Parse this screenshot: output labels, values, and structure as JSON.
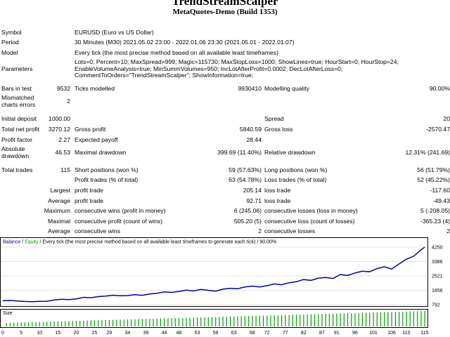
{
  "header": {
    "title": "TrendStreamScalper",
    "subtitle": "MetaQuotes-Demo (Build 1353)"
  },
  "info": {
    "symbol_label": "Symbol",
    "symbol_value": "EURUSD (Euro vs US Dollar)",
    "period_label": "Period",
    "period_value": "30 Minutes (M30) 2021.05.02 23:00 - 2022.01.06 23:30 (2021.05.01 - 2022.01.07)",
    "model_label": "Model",
    "model_value": "Every tick (the most precise method based on all available least timeframes)",
    "parameters_label": "Parameters",
    "parameters_lines": [
      "Lots=0; Percent=10; MaxSpread=999; Magic=115730; MaxStopLoss=1000; ShowLines=true; HourStart=0; HourStop=24;",
      "EnableVolumeAnalysis=true; MinSummVolumes=950; IncLotAfterProfit=0.0002; DecLotAfterLoss=0;",
      "CommentToOrders=\"TrendStreamScalper\"; ShowInformation=true;"
    ],
    "bars_label": "Bars in test",
    "bars_value": "9532",
    "ticks_label": "Ticks modelled",
    "ticks_value": "9930410",
    "quality_label": "Modelling quality",
    "quality_value": "90.00%",
    "mismatch_label_1": "Mismatched",
    "mismatch_label_2": "charts errors",
    "mismatch_value": "2"
  },
  "results": {
    "initial_deposit_label": "Initial deposit",
    "initial_deposit": "1000.00",
    "spread_label": "Spread",
    "spread": "20",
    "net_profit_label": "Total net profit",
    "net_profit": "3270.12",
    "gross_profit_label": "Gross profit",
    "gross_profit": "5840.59",
    "gross_loss_label": "Gross loss",
    "gross_loss": "-2570.47",
    "profit_factor_label": "Profit factor",
    "profit_factor": "2.27",
    "expected_payoff_label": "Expected payoff",
    "expected_payoff": "28.44",
    "abs_dd_label_1": "Absolute",
    "abs_dd_label_2": "drawdown",
    "abs_dd": "46.53",
    "max_dd_label": "Maximal drawdown",
    "max_dd": "399.69 (11.40%)",
    "rel_dd_label": "Relative drawdown",
    "rel_dd": "12.31% (241.69)",
    "total_trades_label": "Total trades",
    "total_trades": "115",
    "short_label": "Short positions (won %)",
    "short_value": "59 (57.63%)",
    "long_label": "Long positions (won %)",
    "long_value": "56 (51.79%)",
    "profit_trades_label": "Profit trades (% of total)",
    "profit_trades": "63 (54.78%)",
    "loss_trades_label": "Loss trades (% of total)",
    "loss_trades": "52 (45.22%)",
    "largest_label": "Largest",
    "largest_profit_label": "profit trade",
    "largest_profit": "205.14",
    "largest_loss_label": "loss trade",
    "largest_loss": "-117.60",
    "average_label": "Average",
    "average_profit_label": "profit trade",
    "average_profit": "92.71",
    "average_loss_label": "loss trade",
    "average_loss": "-49.43",
    "maximum_label": "Maximum",
    "max_cons_wins_label": "consecutive wins (profit in money)",
    "max_cons_wins": "6 (245.06)",
    "max_cons_losses_label": "consecutive losses (loss in money)",
    "max_cons_losses": "5 (-208.05)",
    "maximal_label": "Maximal",
    "maximal_cons_profit_label": "consecutive profit (count of wins)",
    "maximal_cons_profit": "505.20 (5)",
    "maximal_cons_loss_label": "consecutive loss (count of losses)",
    "maximal_cons_loss": "-365.23 (4)",
    "avg_cons_label": "Average",
    "avg_cons_wins_label": "consecutive wins",
    "avg_cons_wins": "2",
    "avg_cons_losses_label": "consecutive losses",
    "avg_cons_losses": "2"
  },
  "chart_data": {
    "type": "line",
    "legend": {
      "balance": "Balance",
      "sep": " / ",
      "equity": "Equity",
      "text": " / Every tick (the most precise method based on all available least timeframes to generate each tick) / 90.00%"
    },
    "colors": {
      "balance": "#0000a0",
      "equity": "#00a000",
      "size": "#00a000",
      "grid": "#c8c8c8"
    },
    "y_ticks": [
      4250,
      3386,
      2521,
      1656,
      792
    ],
    "ylim": [
      792,
      4250
    ],
    "x_ticks": [
      0,
      5,
      10,
      15,
      20,
      25,
      29,
      34,
      39,
      44,
      48,
      53,
      58,
      63,
      68,
      72,
      77,
      82,
      87,
      91,
      96,
      101,
      106,
      110,
      115
    ],
    "xlim": [
      0,
      115
    ],
    "size_label": "Size",
    "series": [
      {
        "name": "Balance",
        "x": [
          0,
          2,
          4,
          6,
          8,
          10,
          12,
          14,
          16,
          18,
          20,
          22,
          24,
          26,
          28,
          30,
          32,
          34,
          36,
          38,
          40,
          42,
          44,
          46,
          48,
          50,
          52,
          54,
          56,
          58,
          60,
          62,
          64,
          66,
          68,
          70,
          72,
          74,
          76,
          78,
          80,
          82,
          84,
          86,
          88,
          90,
          92,
          94,
          96,
          98,
          100,
          102,
          104,
          106,
          108,
          110,
          112,
          114,
          115
        ],
        "values": [
          1030,
          1045,
          1010,
          985,
          975,
          990,
          1000,
          1070,
          1115,
          1095,
          1140,
          1235,
          1215,
          1275,
          1310,
          1360,
          1330,
          1340,
          1390,
          1355,
          1435,
          1475,
          1560,
          1530,
          1590,
          1670,
          1620,
          1705,
          1655,
          1605,
          1725,
          1780,
          1750,
          1855,
          1910,
          1860,
          1935,
          2040,
          1990,
          2110,
          2170,
          2300,
          2250,
          2380,
          2430,
          2370,
          2605,
          2550,
          2700,
          2805,
          2770,
          2960,
          3070,
          2935,
          3240,
          3520,
          3705,
          4085,
          4250
        ]
      }
    ],
    "size_bars": 115
  }
}
